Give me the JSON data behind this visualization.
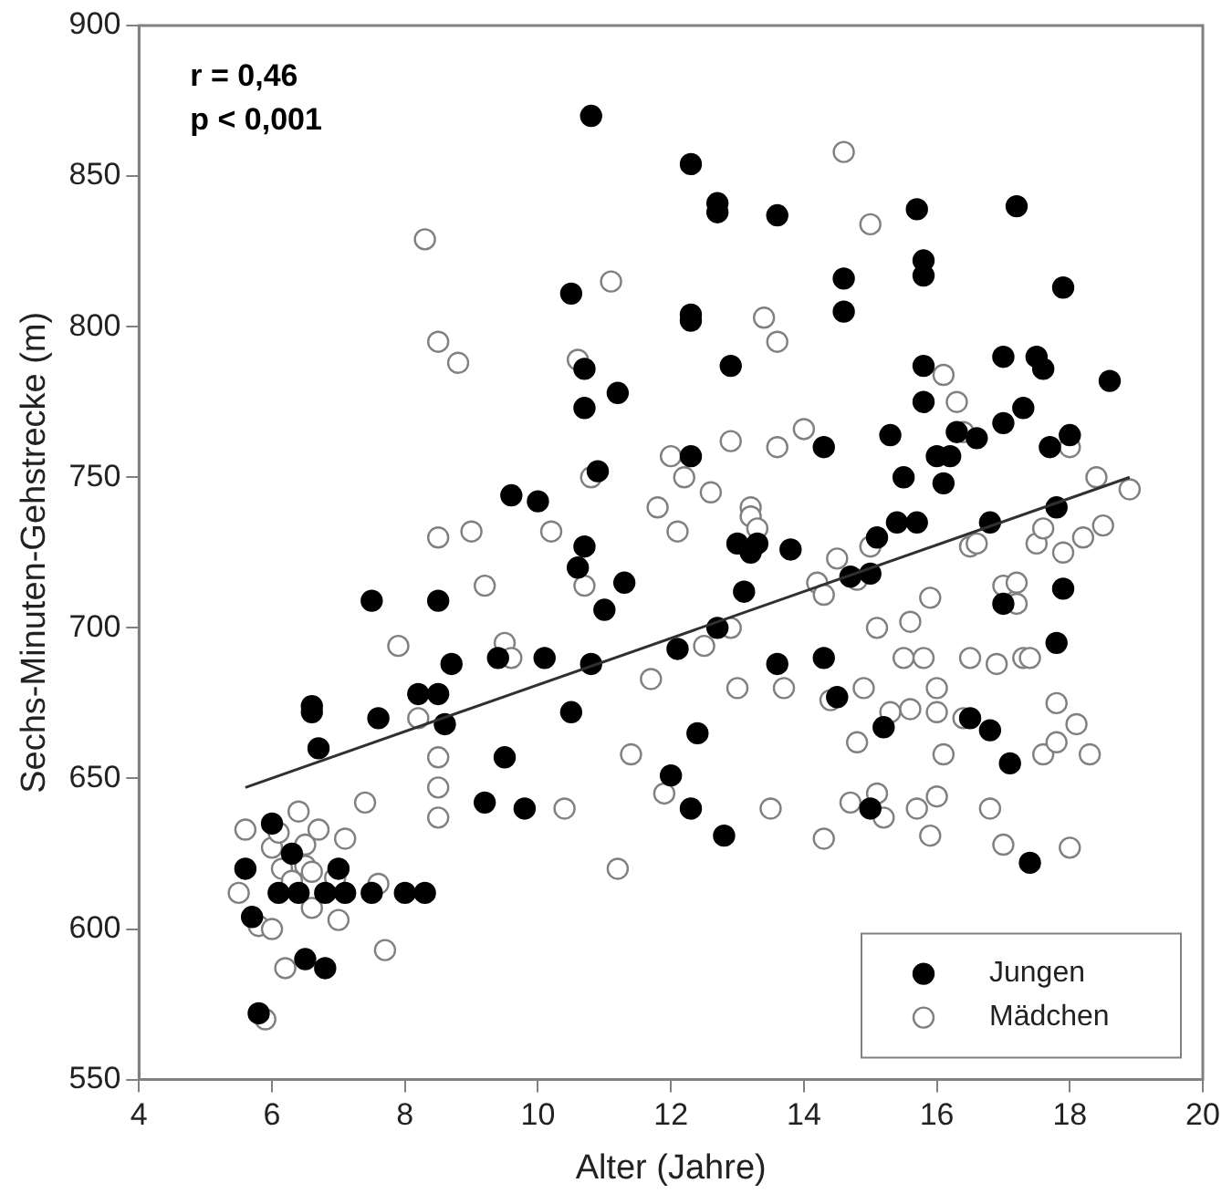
{
  "chart_data": {
    "type": "scatter",
    "xlabel": "Alter (Jahre)",
    "ylabel": "Sechs-Minuten-Gehstrecke (m)",
    "annotations": [
      "r = 0,46",
      "p < 0,001"
    ],
    "xlim": [
      4,
      20
    ],
    "xticks": [
      4,
      6,
      8,
      10,
      12,
      14,
      16,
      18,
      20
    ],
    "ylim": [
      550,
      900
    ],
    "yticks": [
      550,
      600,
      650,
      700,
      750,
      800,
      850,
      900
    ],
    "grid": false,
    "legend": "bottom right",
    "marker": "circle",
    "series": [
      {
        "name": "Jungen",
        "color": "#000000",
        "x": [
          5.6,
          5.7,
          5.8,
          6.0,
          6.1,
          6.3,
          6.4,
          6.5,
          6.6,
          6.6,
          6.7,
          6.8,
          6.8,
          7.0,
          7.1,
          7.5,
          7.6,
          7.5,
          8.0,
          8.3,
          8.2,
          8.5,
          8.5,
          8.6,
          8.7,
          9.2,
          9.4,
          9.5,
          9.6,
          9.8,
          10.0,
          10.1,
          10.5,
          10.5,
          10.6,
          10.7,
          10.7,
          10.8,
          10.7,
          10.9,
          11.0,
          10.8,
          11.2,
          11.3,
          12.0,
          12.1,
          12.3,
          12.3,
          12.3,
          12.3,
          12.3,
          12.4,
          12.7,
          12.7,
          12.7,
          12.8,
          12.9,
          13.0,
          13.1,
          13.2,
          13.3,
          13.6,
          13.8,
          13.6,
          14.3,
          14.3,
          14.5,
          14.6,
          14.6,
          14.7,
          15.0,
          15.0,
          15.1,
          15.2,
          15.3,
          15.4,
          15.5,
          15.7,
          15.8,
          15.8,
          15.8,
          15.8,
          15.7,
          16.0,
          16.1,
          16.2,
          16.3,
          16.5,
          16.6,
          16.8,
          16.8,
          17.0,
          17.0,
          17.2,
          17.3,
          17.5,
          17.6,
          17.7,
          17.8,
          17.9,
          17.4,
          17.1,
          17.8,
          17.9,
          18.0,
          18.6,
          17.0
        ],
        "values": [
          620,
          604,
          572,
          635,
          612,
          625,
          612,
          590,
          674,
          672,
          660,
          587,
          612,
          620,
          612,
          709,
          670,
          612,
          612,
          612,
          678,
          709,
          678,
          668,
          688,
          642,
          690,
          657,
          744,
          640,
          742,
          690,
          672,
          811,
          720,
          786,
          773,
          870,
          727,
          752,
          706,
          688,
          778,
          715,
          651,
          693,
          804,
          854,
          802,
          640,
          757,
          665,
          841,
          838,
          700,
          631,
          787,
          728,
          712,
          725,
          728,
          837,
          726,
          688,
          760,
          690,
          677,
          816,
          805,
          717,
          640,
          718,
          730,
          667,
          764,
          735,
          750,
          839,
          822,
          817,
          787,
          775,
          735,
          757,
          748,
          757,
          765,
          670,
          763,
          735,
          666,
          790,
          768,
          840,
          773,
          790,
          786,
          760,
          740,
          813,
          622,
          655,
          695,
          713,
          764,
          782,
          708
        ]
      },
      {
        "name": "Mädchen",
        "color": "#808080",
        "x": [
          5.5,
          5.6,
          5.8,
          5.9,
          6.0,
          6.0,
          6.1,
          6.2,
          6.15,
          6.3,
          6.4,
          6.5,
          6.5,
          6.6,
          6.6,
          6.7,
          6.95,
          7.0,
          7.1,
          7.4,
          7.6,
          7.7,
          7.9,
          8.2,
          8.3,
          8.5,
          8.5,
          8.5,
          8.5,
          8.5,
          8.8,
          9.0,
          9.2,
          9.5,
          9.6,
          10.4,
          10.2,
          10.6,
          10.7,
          10.8,
          11.1,
          11.2,
          11.4,
          11.7,
          11.8,
          11.9,
          12.0,
          12.1,
          12.2,
          12.5,
          12.6,
          12.9,
          13.0,
          13.2,
          13.2,
          13.3,
          13.4,
          13.5,
          13.6,
          13.6,
          13.7,
          14.0,
          14.2,
          14.3,
          14.4,
          14.6,
          14.5,
          14.7,
          14.8,
          14.9,
          15.0,
          15.1,
          15.0,
          15.1,
          15.2,
          15.3,
          15.5,
          15.6,
          15.6,
          15.7,
          15.8,
          15.9,
          15.9,
          16.0,
          16.0,
          16.1,
          16.1,
          16.3,
          16.4,
          16.5,
          16.5,
          16.4,
          16.6,
          16.8,
          16.9,
          17.0,
          17.0,
          17.2,
          17.3,
          17.4,
          17.5,
          17.6,
          17.6,
          17.8,
          17.8,
          17.9,
          18.0,
          18.0,
          18.1,
          18.2,
          18.3,
          18.4,
          18.5,
          18.9,
          16.0,
          17.2,
          14.3,
          14.8,
          12.9
        ],
        "values": [
          612,
          633,
          601,
          570,
          600,
          627,
          632,
          587,
          620,
          616,
          639,
          628,
          621,
          607,
          619,
          633,
          617,
          603,
          630,
          642,
          615,
          593,
          694,
          670,
          829,
          795,
          657,
          647,
          637,
          730,
          788,
          732,
          714,
          695,
          690,
          640,
          732,
          789,
          714,
          750,
          815,
          620,
          658,
          683,
          740,
          645,
          757,
          732,
          750,
          694,
          745,
          762,
          680,
          740,
          737,
          733,
          803,
          640,
          795,
          760,
          680,
          766,
          715,
          711,
          676,
          858,
          723,
          642,
          716,
          680,
          834,
          700,
          727,
          645,
          637,
          672,
          690,
          702,
          673,
          640,
          690,
          710,
          631,
          644,
          672,
          658,
          784,
          775,
          765,
          690,
          727,
          670,
          728,
          640,
          688,
          714,
          628,
          715,
          690,
          690,
          728,
          733,
          658,
          675,
          662,
          725,
          627,
          760,
          668,
          730,
          658,
          750,
          734,
          746,
          680,
          708,
          630,
          662,
          700
        ]
      },
      {
        "type": "line",
        "color": "#303030",
        "marker": "none",
        "x": [
          5.6,
          18.9
        ],
        "values": [
          647,
          750
        ]
      }
    ]
  }
}
